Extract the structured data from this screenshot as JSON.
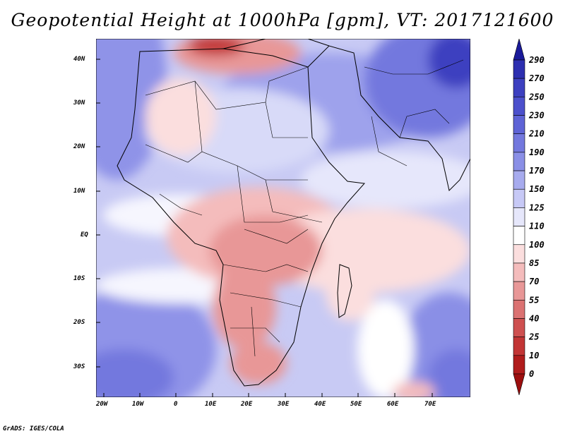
{
  "title": "Geopotential Height at 1000hPa [gpm], VT: 2017121600",
  "footer": "GrADS: IGES/COLA",
  "lat_labels": [
    "40N",
    "30N",
    "20N",
    "10N",
    "EQ",
    "10S",
    "20S",
    "30S"
  ],
  "lon_labels": [
    "20W",
    "10W",
    "0",
    "10E",
    "20E",
    "30E",
    "40E",
    "50E",
    "60E",
    "70E"
  ],
  "colorbar": {
    "levels": [
      "290",
      "270",
      "250",
      "230",
      "210",
      "190",
      "170",
      "150",
      "125",
      "110",
      "100",
      "85",
      "70",
      "55",
      "40",
      "25",
      "10",
      "0"
    ],
    "colors": [
      "#1a1a9a",
      "#2d2fb0",
      "#3d40c0",
      "#4c50cc",
      "#5e63d6",
      "#7378de",
      "#8a8fe6",
      "#a7abee",
      "#c7c9f6",
      "#e6e7fb",
      "#ffffff",
      "#fbdede",
      "#f4bcbc",
      "#e89797",
      "#db7272",
      "#ce5050",
      "#c23535",
      "#b01c1c",
      "#9c0e0e"
    ]
  }
}
